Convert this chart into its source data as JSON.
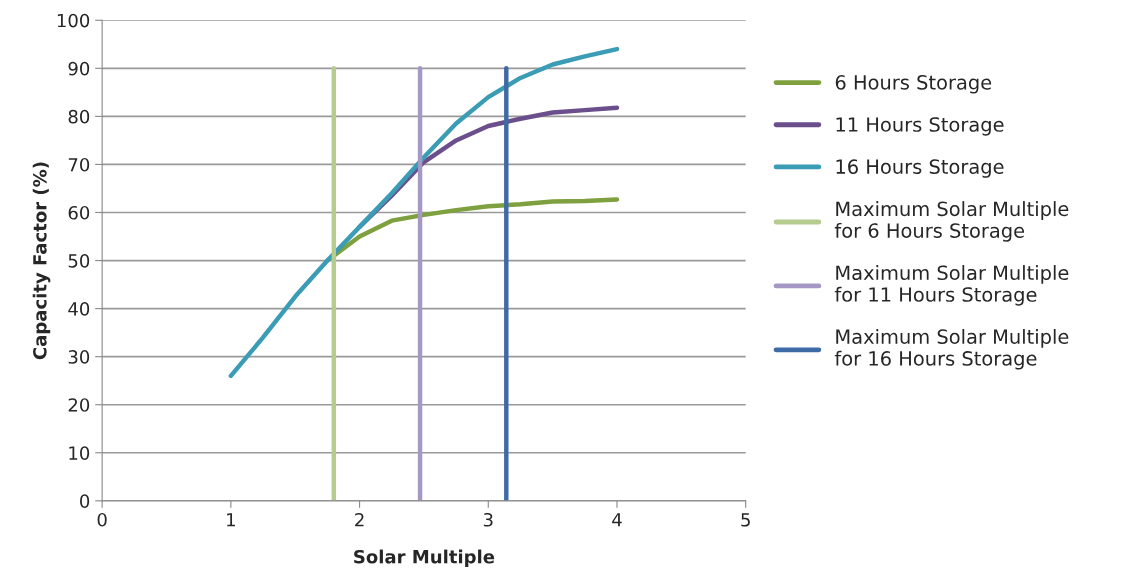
{
  "chart_data": {
    "type": "line",
    "xlabel": "Solar Multiple",
    "ylabel": "Capacity Factor (%)",
    "xlim": [
      0,
      5
    ],
    "xticks": [
      0,
      1,
      2,
      3,
      4,
      5
    ],
    "ylim": [
      0,
      100
    ],
    "yticks": [
      0,
      10,
      20,
      30,
      40,
      50,
      60,
      70,
      80,
      90,
      100
    ],
    "grid": "y",
    "legend": "right",
    "marker": "none",
    "line_style": "solid",
    "series": [
      {
        "name": "6 Hours Storage",
        "color": "#7ea03e",
        "x": [
          1.75,
          2,
          2.25,
          2.5,
          2.75,
          3,
          3.25,
          3.5,
          3.75,
          4
        ],
        "values": [
          50,
          55,
          58.3,
          59.5,
          60.5,
          61.3,
          61.7,
          62.3,
          62.4,
          62.7
        ]
      },
      {
        "name": "11 Hours Storage",
        "color": "#6a4f8c",
        "x": [
          2,
          2.25,
          2.5,
          2.75,
          3,
          3.25,
          3.5,
          3.75,
          4
        ],
        "values": [
          57,
          63.5,
          70.5,
          75,
          78,
          79.5,
          80.8,
          81.3,
          81.8
        ]
      },
      {
        "name": "16 Hours Storage",
        "color": "#3a9cb5",
        "x": [
          1,
          1.25,
          1.5,
          1.75,
          2,
          2.25,
          2.5,
          2.75,
          3,
          3.25,
          3.5,
          3.75,
          4
        ],
        "values": [
          26,
          34,
          42.5,
          50,
          57,
          64,
          71.5,
          78.5,
          84,
          88,
          90.8,
          92.5,
          94
        ]
      },
      {
        "name": "Maximum Solar Multiple for 6 Hours Storage",
        "color": "#b6cc8f",
        "x": [
          1.8,
          1.8
        ],
        "values": [
          0,
          90
        ]
      },
      {
        "name": "Maximum Solar Multiple for 11 Hours Storage",
        "color": "#a698c5",
        "x": [
          2.47,
          2.47
        ],
        "values": [
          0,
          90
        ]
      },
      {
        "name": "Maximum Solar Multiple for 16 Hours Storage",
        "color": "#3e6ba6",
        "x": [
          3.14,
          3.14
        ],
        "values": [
          0,
          90
        ]
      }
    ]
  }
}
